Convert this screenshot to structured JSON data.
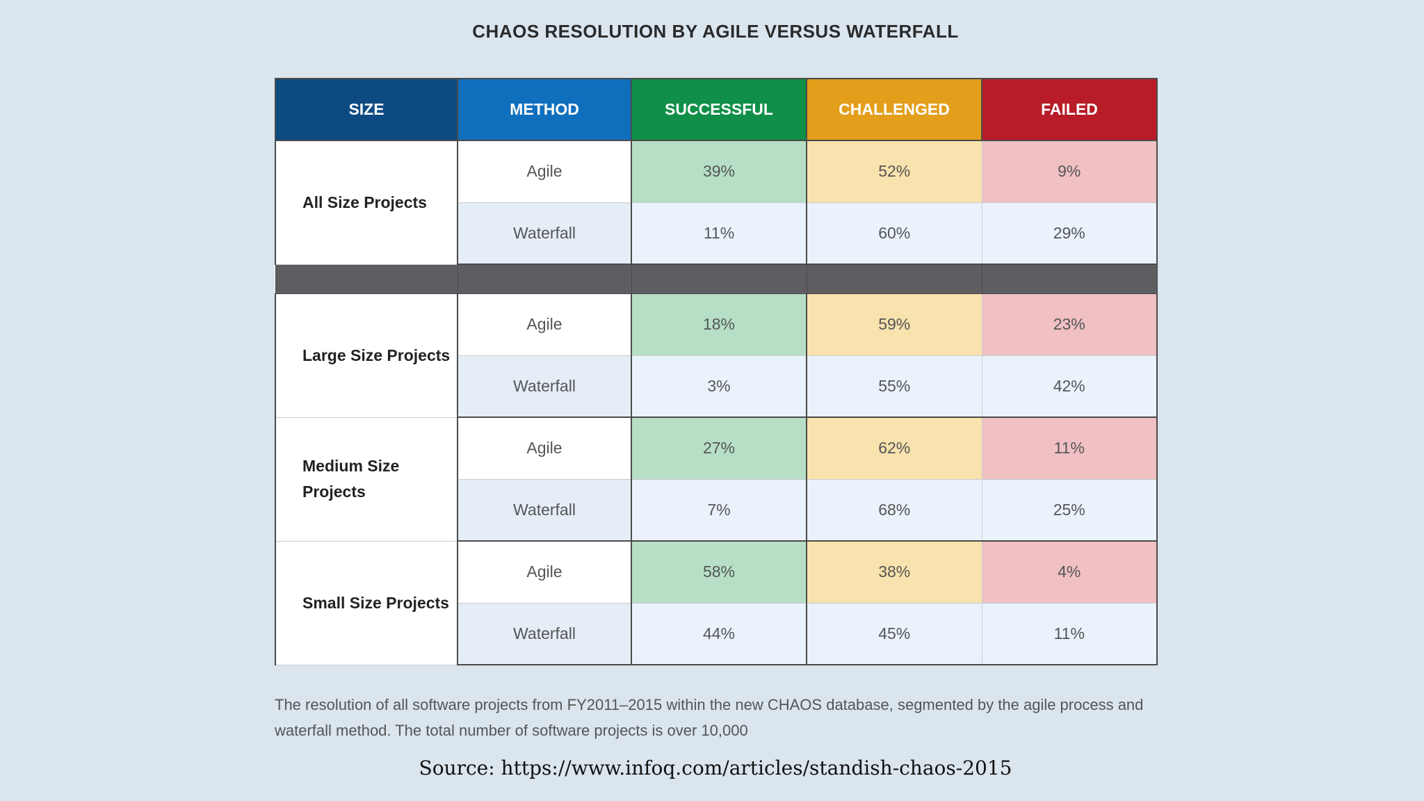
{
  "title": "CHAOS RESOLUTION BY AGILE VERSUS WATERFALL",
  "colors": {
    "size_header": "#0d4a82",
    "method_header": "#0f6fbd",
    "successful_header": "#0f8f48",
    "challenged_header": "#e39f1b",
    "failed_header": "#b71c27"
  },
  "chart_data": {
    "type": "table",
    "title": "CHAOS RESOLUTION BY AGILE VERSUS WATERFALL",
    "columns": [
      "SIZE",
      "METHOD",
      "SUCCESSFUL",
      "CHALLENGED",
      "FAILED"
    ],
    "groups": [
      {
        "size": "All Size Projects",
        "rows": [
          {
            "method": "Agile",
            "successful": "39%",
            "challenged": "52%",
            "failed": "9%"
          },
          {
            "method": "Waterfall",
            "successful": "11%",
            "challenged": "60%",
            "failed": "29%"
          }
        ]
      },
      {
        "size": "Large Size Projects",
        "rows": [
          {
            "method": "Agile",
            "successful": "18%",
            "challenged": "59%",
            "failed": "23%"
          },
          {
            "method": "Waterfall",
            "successful": "3%",
            "challenged": "55%",
            "failed": "42%"
          }
        ]
      },
      {
        "size": "Medium Size Projects",
        "rows": [
          {
            "method": "Agile",
            "successful": "27%",
            "challenged": "62%",
            "failed": "11%"
          },
          {
            "method": "Waterfall",
            "successful": "7%",
            "challenged": "68%",
            "failed": "25%"
          }
        ]
      },
      {
        "size": "Small Size Projects",
        "rows": [
          {
            "method": "Agile",
            "successful": "58%",
            "challenged": "38%",
            "failed": "4%"
          },
          {
            "method": "Waterfall",
            "successful": "44%",
            "challenged": "45%",
            "failed": "11%"
          }
        ]
      }
    ]
  },
  "caption": "The resolution of all software projects from FY2011–2015 within the new CHAOS database, segmented by the agile process and waterfall method. The total number of software projects is over 10,000",
  "source": "Source: https://www.infoq.com/articles/standish-chaos-2015"
}
